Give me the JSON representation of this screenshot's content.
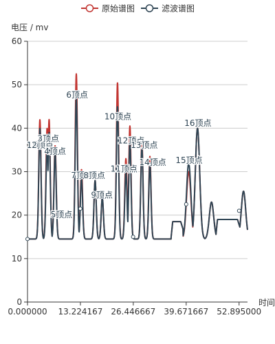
{
  "chart_data": {
    "type": "line",
    "ylabel": "电压 / mv",
    "xlabel": "时间",
    "ylim": [
      0,
      60
    ],
    "yticks": [
      0,
      10,
      20,
      30,
      40,
      50,
      60
    ],
    "xlim": [
      0,
      55
    ],
    "xticks": [
      "0.000000",
      "13.224167",
      "26.446667",
      "39.671667",
      "52.895000"
    ],
    "grid": true,
    "legend_position": "top-center",
    "baseline": 14.5,
    "colors": {
      "raw": "#c23531",
      "filtered": "#2f4554"
    },
    "series": [
      {
        "name": "原始谱图",
        "peaks": [
          {
            "x": 3.1,
            "h": 42.0
          },
          {
            "x": 4.9,
            "h": 40.0
          },
          {
            "x": 5.4,
            "h": 42.0
          },
          {
            "x": 6.9,
            "h": 36.0
          },
          {
            "x": 12.2,
            "h": 52.5
          },
          {
            "x": 13.5,
            "h": 30.5
          },
          {
            "x": 16.9,
            "h": 28.0
          },
          {
            "x": 18.7,
            "h": 24.0
          },
          {
            "x": 22.5,
            "h": 50.5
          },
          {
            "x": 24.6,
            "h": 33.0
          },
          {
            "x": 25.6,
            "h": 40.5
          },
          {
            "x": 28.6,
            "h": 37.0
          },
          {
            "x": 30.6,
            "h": 33.5
          },
          {
            "x": 40.3,
            "h": 30.0
          },
          {
            "x": 42.5,
            "h": 40.0
          },
          {
            "x": 46.0,
            "h": 23.0
          },
          {
            "x": 54.0,
            "h": 25.5
          }
        ]
      },
      {
        "name": "滤波谱图",
        "peaks": [
          {
            "x": 3.1,
            "h": 40.0
          },
          {
            "x": 4.9,
            "h": 36.0
          },
          {
            "x": 5.4,
            "h": 39.0
          },
          {
            "x": 6.9,
            "h": 34.5
          },
          {
            "x": 12.2,
            "h": 47.0
          },
          {
            "x": 13.5,
            "h": 28.5
          },
          {
            "x": 16.9,
            "h": 28.0
          },
          {
            "x": 18.7,
            "h": 24.0
          },
          {
            "x": 22.5,
            "h": 45.0
          },
          {
            "x": 24.6,
            "h": 30.0
          },
          {
            "x": 25.6,
            "h": 37.0
          },
          {
            "x": 28.6,
            "h": 35.5
          },
          {
            "x": 30.6,
            "h": 32.0
          },
          {
            "x": 40.3,
            "h": 32.0
          },
          {
            "x": 42.5,
            "h": 40.0
          },
          {
            "x": 46.0,
            "h": 23.0
          },
          {
            "x": 54.0,
            "h": 25.5
          }
        ]
      }
    ],
    "plateaus": [
      {
        "x0": 36.3,
        "x1": 38.3,
        "level": 18.5
      },
      {
        "x0": 47.5,
        "x1": 52.5,
        "level": 19.0
      }
    ],
    "markers": [
      {
        "x": 0.0,
        "y": 14.5
      },
      {
        "x": 13.2,
        "y": 21.5
      },
      {
        "x": 26.4,
        "y": 15.0
      },
      {
        "x": 39.67,
        "y": 22.5
      },
      {
        "x": 52.9,
        "y": 21.0
      }
    ],
    "peak_labels": [
      {
        "text": "1顶点",
        "x": 2.5,
        "y": 35.5
      },
      {
        "text": "2顶点",
        "x": 3.8,
        "y": 35.5
      },
      {
        "text": "3顶点",
        "x": 5.2,
        "y": 37.0
      },
      {
        "text": "4顶点",
        "x": 6.9,
        "y": 34.0
      },
      {
        "text": "5顶点",
        "x": 8.5,
        "y": 19.5
      },
      {
        "text": "6顶点",
        "x": 12.4,
        "y": 47.0
      },
      {
        "text": "7顶点",
        "x": 13.6,
        "y": 28.5
      },
      {
        "text": "8顶点",
        "x": 16.7,
        "y": 28.5
      },
      {
        "text": "9顶点",
        "x": 18.6,
        "y": 24.0
      },
      {
        "text": "10顶点",
        "x": 22.6,
        "y": 42.0
      },
      {
        "text": "11顶点",
        "x": 24.1,
        "y": 30.0
      },
      {
        "text": "12顶点",
        "x": 25.9,
        "y": 36.5
      },
      {
        "text": "13顶点",
        "x": 29.2,
        "y": 35.5
      },
      {
        "text": "14顶点",
        "x": 31.3,
        "y": 31.5
      },
      {
        "text": "15顶点",
        "x": 40.4,
        "y": 32.0
      },
      {
        "text": "16顶点",
        "x": 42.6,
        "y": 40.5
      }
    ]
  },
  "legend": {
    "items": [
      {
        "label": "原始谱图",
        "color": "#c23531"
      },
      {
        "label": "滤波谱图",
        "color": "#2f4554"
      }
    ]
  }
}
